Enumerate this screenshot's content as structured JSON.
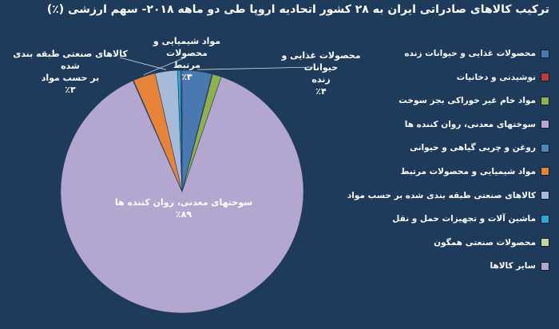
{
  "chart_data": {
    "type": "pie",
    "title": "ترکیب کالاهای صادراتی ایران به ۲۸ کشور اتحادیه اروپا طی دو ماهه ۲۰۱۸- سهم ارزشی (٪)",
    "legend_position": "right",
    "slices": [
      {
        "name": "محصولات غذایی و حیوانات زنده",
        "value": 4,
        "color": "#4a78b0"
      },
      {
        "name": "نوشیدنی و دخانیات",
        "value": 0.1,
        "color": "#c03a3a"
      },
      {
        "name": "مواد خام غیر خوراکی بجز سوخت",
        "value": 1.2,
        "color": "#8fb04a"
      },
      {
        "name": "سوختهای معدنی، روان کننده ها",
        "value": 89,
        "color": "#b3a6cf"
      },
      {
        "name": "روغن و چربی گیاهی و حیوانی",
        "value": 0.1,
        "color": "#4f86b8"
      },
      {
        "name": "مواد شیمیایی و محصولات مرتبط",
        "value": 3,
        "color": "#e8833a"
      },
      {
        "name": "کالاهای صنعتی طبقه بندی شده بر حسب مواد",
        "value": 3,
        "color": "#a6bad9"
      },
      {
        "name": "ماشین آلات و تجهیزات حمل و نقل",
        "value": 0.4,
        "color": "#29a7d6"
      },
      {
        "name": "محصولات صنعتی همگون",
        "value": 0.1,
        "color": "#c4d7a0"
      },
      {
        "name": "سایر کالاها",
        "value": 0.1,
        "color": "#b2a4cc"
      }
    ],
    "data_labels": {
      "food": {
        "line1": "محصولات غذایی و حیوانات",
        "line2": "زنده",
        "pct": "٪۴"
      },
      "chem": {
        "line1": "مواد شیمیایی و محصولات",
        "line2": "مرتبط",
        "pct": "٪۳"
      },
      "mfg": {
        "line1": "کالاهای صنعتی طبقه بندی شده",
        "line2": "بر حسب مواد",
        "pct": "٪۳"
      },
      "fuel": {
        "line1": "سوختهای معدنی، روان کننده ها",
        "pct": "٪۸۹"
      }
    }
  }
}
